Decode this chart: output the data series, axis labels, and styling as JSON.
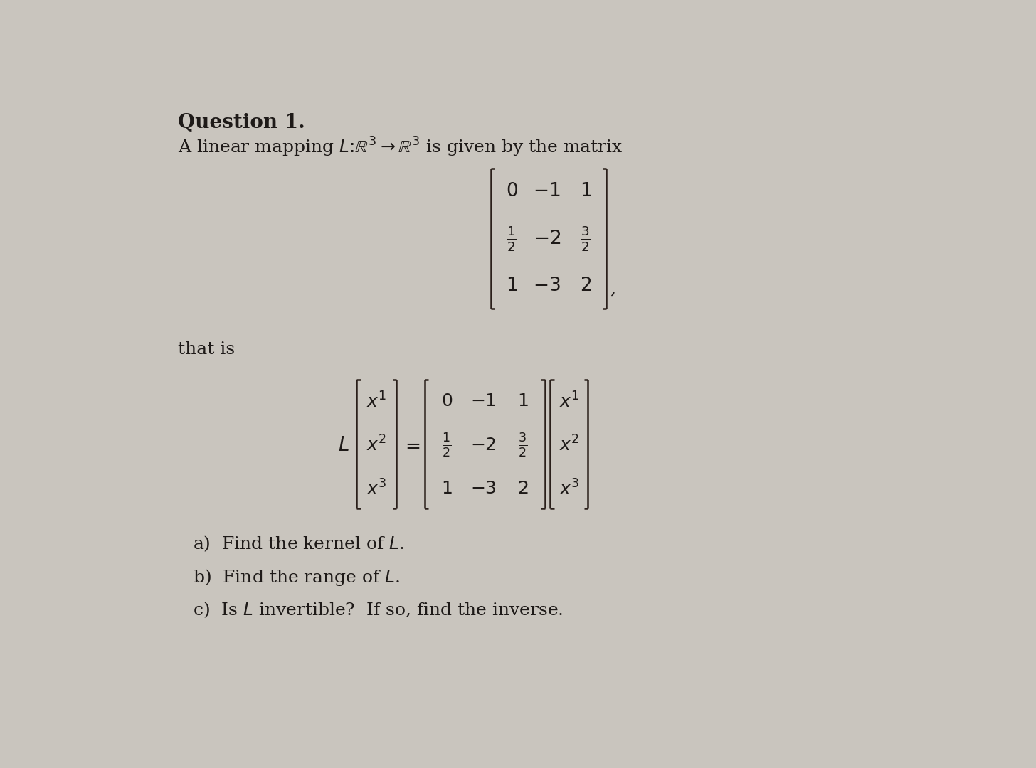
{
  "bg_color": "#c9c5be",
  "text_color": "#1e1a18",
  "title": "Question 1.",
  "font_size_title": 20,
  "font_size_body": 18,
  "font_size_matrix": 19,
  "font_size_eq": 18,
  "bracket_color": "#2a1f1a",
  "bracket_lw": 1.8,
  "bracket_arm": 7
}
